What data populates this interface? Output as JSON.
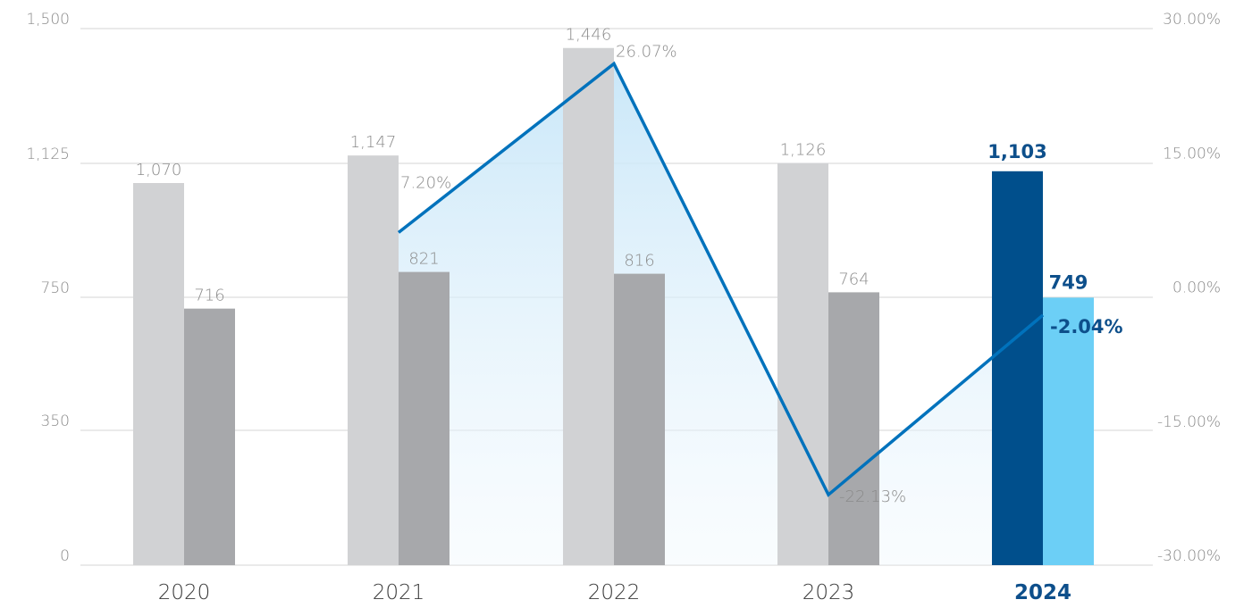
{
  "chart_data": {
    "type": "bar",
    "categories": [
      "2020",
      "2021",
      "2022",
      "2023",
      "2024"
    ],
    "highlight_category": "2024",
    "y_left": {
      "ylim": [
        0,
        1500
      ],
      "ticks": [
        0,
        350,
        750,
        1125,
        1500
      ],
      "tick_labels": [
        "0",
        "350",
        "750",
        "1,125",
        "1,500"
      ]
    },
    "y_right": {
      "ylim": [
        -30,
        30
      ],
      "ticks": [
        -30,
        -15,
        0,
        15,
        30
      ],
      "tick_labels": [
        "-30.00%",
        "-15.00%",
        "0.00%",
        "15.00%",
        "30.00%"
      ]
    },
    "series": [
      {
        "values": [
          1070,
          1147,
          1446,
          1126,
          1103
        ],
        "labels": [
          "1,070",
          "1,147",
          "1,446",
          "1,126",
          "1,103"
        ],
        "color": "#d1d2d4",
        "highlight_color": "#004f8c"
      },
      {
        "values": [
          716,
          821,
          816,
          764,
          749
        ],
        "labels": [
          "716",
          "821",
          "816",
          "764",
          "749"
        ],
        "color": "#a7a8ab",
        "highlight_color": "#6ccff6"
      }
    ],
    "line": {
      "type": "line",
      "axis": "right",
      "categories": [
        "2021",
        "2022",
        "2023",
        "2024"
      ],
      "values": [
        7.2,
        26.07,
        -22.13,
        -2.04
      ],
      "labels": [
        "7.20%",
        "26.07%",
        "-22.13%",
        "-2.04%"
      ],
      "color": "#0072bc",
      "area_fill": "#cfe9f8"
    },
    "grid": true,
    "legend": "none"
  }
}
